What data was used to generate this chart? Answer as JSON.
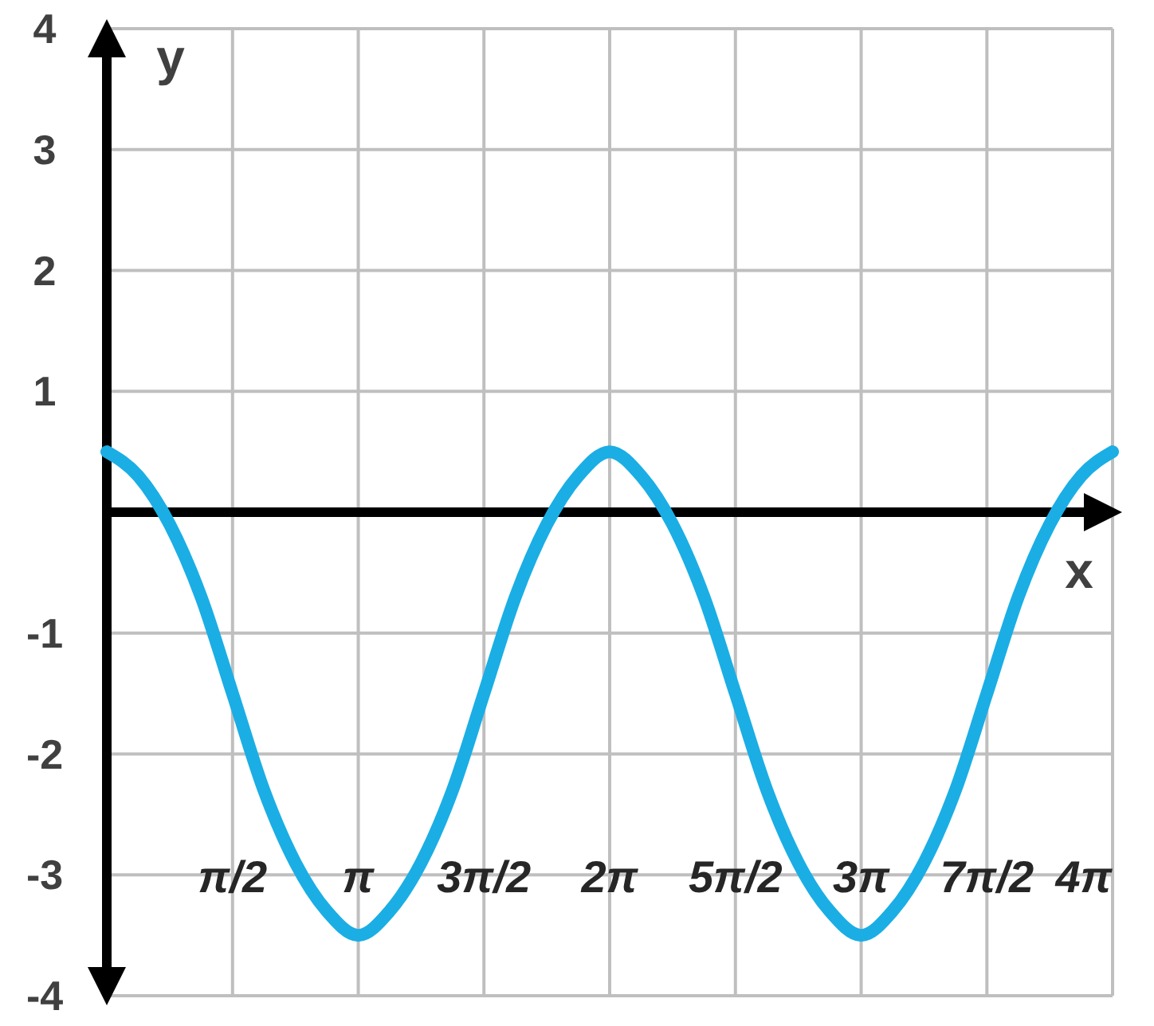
{
  "chart_data": {
    "type": "line",
    "xlabel": "x",
    "ylabel": "y",
    "x": [
      0,
      0.393,
      0.785,
      1.178,
      1.571,
      1.963,
      2.356,
      2.749,
      3.142,
      3.534,
      3.927,
      4.32,
      4.712,
      5.105,
      5.498,
      5.89,
      6.283,
      6.676,
      7.069,
      7.461,
      7.854,
      8.247,
      8.639,
      9.032,
      9.425,
      9.817,
      10.21,
      10.603,
      10.996,
      11.388,
      11.781,
      12.174,
      12.566
    ],
    "series": [
      {
        "color": "#1aaee5",
        "values": [
          0.5,
          0.3,
          -0.1,
          -0.7,
          -1.5,
          -2.3,
          -2.9,
          -3.3,
          -3.5,
          -3.3,
          -2.9,
          -2.3,
          -1.5,
          -0.7,
          -0.1,
          0.3,
          0.5,
          0.3,
          -0.1,
          -0.7,
          -1.5,
          -2.3,
          -2.9,
          -3.3,
          -3.5,
          -3.3,
          -2.9,
          -2.3,
          -1.5,
          -0.7,
          -0.1,
          0.3,
          0.5
        ]
      }
    ],
    "xlim": [
      0,
      12.566
    ],
    "ylim": [
      -4,
      4
    ],
    "xticks": [
      {
        "value": 1.571,
        "label": "π/2"
      },
      {
        "value": 3.142,
        "label": "π"
      },
      {
        "value": 4.712,
        "label": "3π/2"
      },
      {
        "value": 6.283,
        "label": "2π"
      },
      {
        "value": 7.854,
        "label": "5π/2"
      },
      {
        "value": 9.425,
        "label": "3π"
      },
      {
        "value": 10.996,
        "label": "7π/2"
      },
      {
        "value": 12.566,
        "label": "4π"
      }
    ],
    "yticks": [
      -4,
      -3,
      -2,
      -1,
      1,
      2,
      3,
      4
    ],
    "grid": true,
    "marker": "none",
    "line_style": "solid"
  }
}
